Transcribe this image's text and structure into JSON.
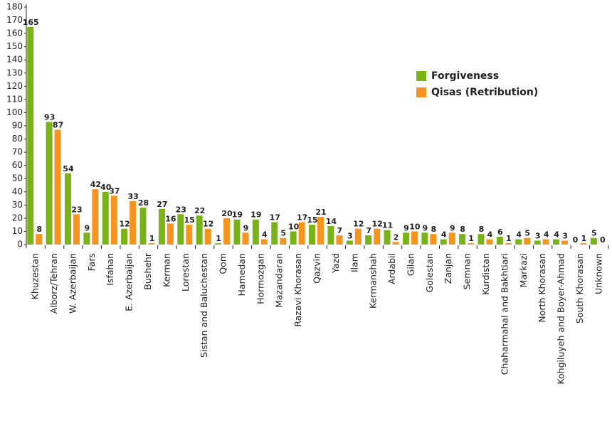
{
  "chart_data": {
    "type": "bar",
    "categories": [
      "Khuzestan",
      "Alborz/Tehran",
      "W. Azerbaijan",
      "Fars",
      "Isfahan",
      "E. Azerbaijan",
      "Bushehr",
      "Kerman",
      "Lorestan",
      "Sistan and Baluchestan",
      "Qom",
      "Hamedan",
      "Hormozgan",
      "Mazandaran",
      "Razavi Khorasan",
      "Qazvin",
      "Yazd",
      "Ilam",
      "Kermanshah",
      "Ardabil",
      "Gilan",
      "Golestan",
      "Zanjan",
      "Semnan",
      "Kurdistan",
      "Chaharmahal and Bakhtiari",
      "Markazi",
      "North Khorasan",
      "Kohgiluyeh and Boyer-Ahmad",
      "South Khorasan",
      "Unknown"
    ],
    "series": [
      {
        "name": "Forgiveness",
        "color": "#7ab317",
        "values": [
          165,
          93,
          54,
          9,
          40,
          12,
          28,
          27,
          23,
          22,
          1,
          19,
          19,
          17,
          10,
          15,
          14,
          3,
          7,
          11,
          9,
          9,
          4,
          8,
          8,
          6,
          4,
          3,
          4,
          0,
          5
        ]
      },
      {
        "name": "Qisas (Retribution)",
        "color": "#f7941d",
        "values": [
          8,
          87,
          23,
          42,
          37,
          33,
          1,
          16,
          15,
          12,
          20,
          9,
          4,
          5,
          17,
          21,
          7,
          12,
          12,
          2,
          10,
          8,
          9,
          1,
          4,
          1,
          5,
          4,
          3,
          1,
          0
        ]
      }
    ],
    "ylim": [
      0,
      180
    ],
    "yticks": [
      0,
      10,
      20,
      30,
      40,
      50,
      60,
      70,
      80,
      90,
      100,
      110,
      120,
      130,
      140,
      150,
      160,
      170,
      180
    ],
    "legend": "upper right"
  }
}
